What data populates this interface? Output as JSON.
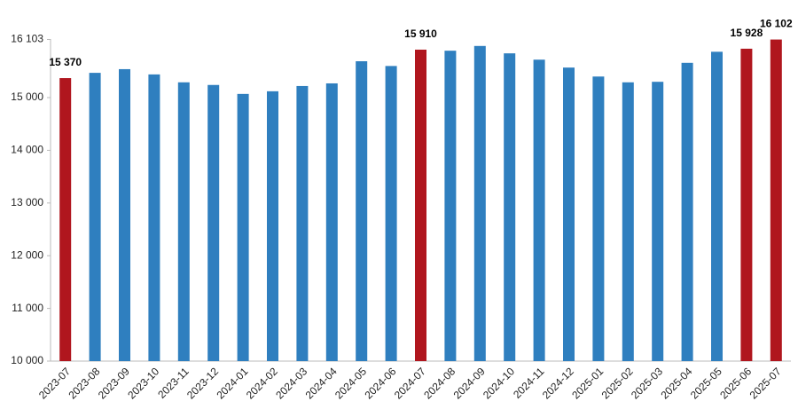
{
  "chart_data": {
    "type": "bar",
    "categories": [
      "2023-07",
      "2023-08",
      "2023-09",
      "2023-10",
      "2023-11",
      "2023-12",
      "2024-01",
      "2024-02",
      "2024-03",
      "2024-04",
      "2024-05",
      "2024-06",
      "2024-07",
      "2024-08",
      "2024-09",
      "2024-10",
      "2024-11",
      "2024-12",
      "2025-01",
      "2025-02",
      "2025-03",
      "2025-04",
      "2025-05",
      "2025-06",
      "2025-07"
    ],
    "values": [
      15370,
      15470,
      15540,
      15440,
      15290,
      15240,
      15070,
      15120,
      15220,
      15270,
      15690,
      15600,
      15910,
      15890,
      15980,
      15840,
      15720,
      15570,
      15400,
      15290,
      15300,
      15660,
      15870,
      15928,
      16102
    ],
    "value_labels": [
      "15 370",
      null,
      null,
      null,
      null,
      null,
      null,
      null,
      null,
      null,
      null,
      null,
      "15 910",
      null,
      null,
      null,
      null,
      null,
      null,
      null,
      null,
      null,
      null,
      "15 928",
      "16 102"
    ],
    "colors": [
      "#b0161e",
      "#2f7fbf",
      "#2f7fbf",
      "#2f7fbf",
      "#2f7fbf",
      "#2f7fbf",
      "#2f7fbf",
      "#2f7fbf",
      "#2f7fbf",
      "#2f7fbf",
      "#2f7fbf",
      "#2f7fbf",
      "#b0161e",
      "#2f7fbf",
      "#2f7fbf",
      "#2f7fbf",
      "#2f7fbf",
      "#2f7fbf",
      "#2f7fbf",
      "#2f7fbf",
      "#2f7fbf",
      "#2f7fbf",
      "#2f7fbf",
      "#b0161e",
      "#b0161e"
    ],
    "ylim": [
      10000,
      16103
    ],
    "yticks": [
      {
        "value": 10000,
        "label": "10 000"
      },
      {
        "value": 11000,
        "label": "11 000"
      },
      {
        "value": 12000,
        "label": "12 000"
      },
      {
        "value": 13000,
        "label": "13 000"
      },
      {
        "value": 14000,
        "label": "14 000"
      },
      {
        "value": 15000,
        "label": "15 000"
      },
      {
        "value": 16103,
        "label": "16 103"
      }
    ],
    "grid": false
  }
}
